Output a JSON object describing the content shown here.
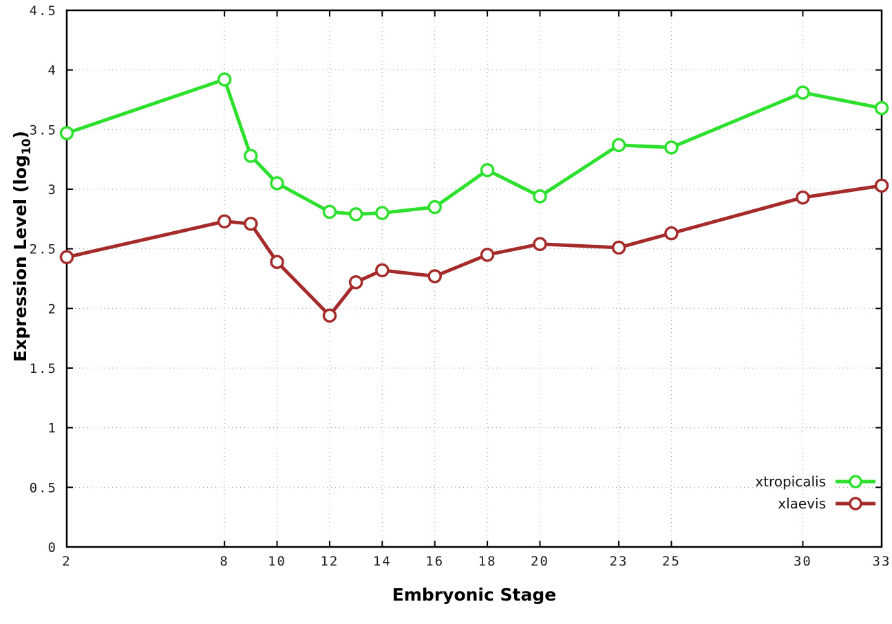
{
  "chart_data": {
    "type": "line",
    "x": [
      2,
      8,
      9,
      10,
      12,
      13,
      14,
      16,
      18,
      20,
      23,
      25,
      30,
      33
    ],
    "series": [
      {
        "name": "xtropicalis",
        "color": "#2ee02e",
        "values": [
          3.47,
          3.92,
          3.28,
          3.05,
          2.81,
          2.79,
          2.8,
          2.85,
          3.16,
          2.94,
          3.37,
          3.35,
          3.81,
          3.68
        ]
      },
      {
        "name": "xlaevis",
        "color": "#a52a2a",
        "values": [
          2.43,
          2.73,
          2.71,
          2.39,
          1.94,
          2.22,
          2.32,
          2.27,
          2.45,
          2.54,
          2.51,
          2.63,
          2.93,
          3.03
        ]
      }
    ],
    "xlabel": "Embryonic Stage",
    "ylabel_prefix": "Expression Level (log",
    "ylabel_sub": "10",
    "ylabel_suffix": ")",
    "xlim": [
      2,
      33
    ],
    "ylim": [
      0,
      4.5
    ],
    "xticks": [
      2,
      8,
      10,
      12,
      14,
      16,
      18,
      20,
      23,
      25,
      30,
      33
    ],
    "yticks": [
      0,
      0.5,
      1,
      1.5,
      2,
      2.5,
      3,
      3.5,
      4,
      4.5
    ],
    "grid": true,
    "legend_position": "bottom-right"
  }
}
